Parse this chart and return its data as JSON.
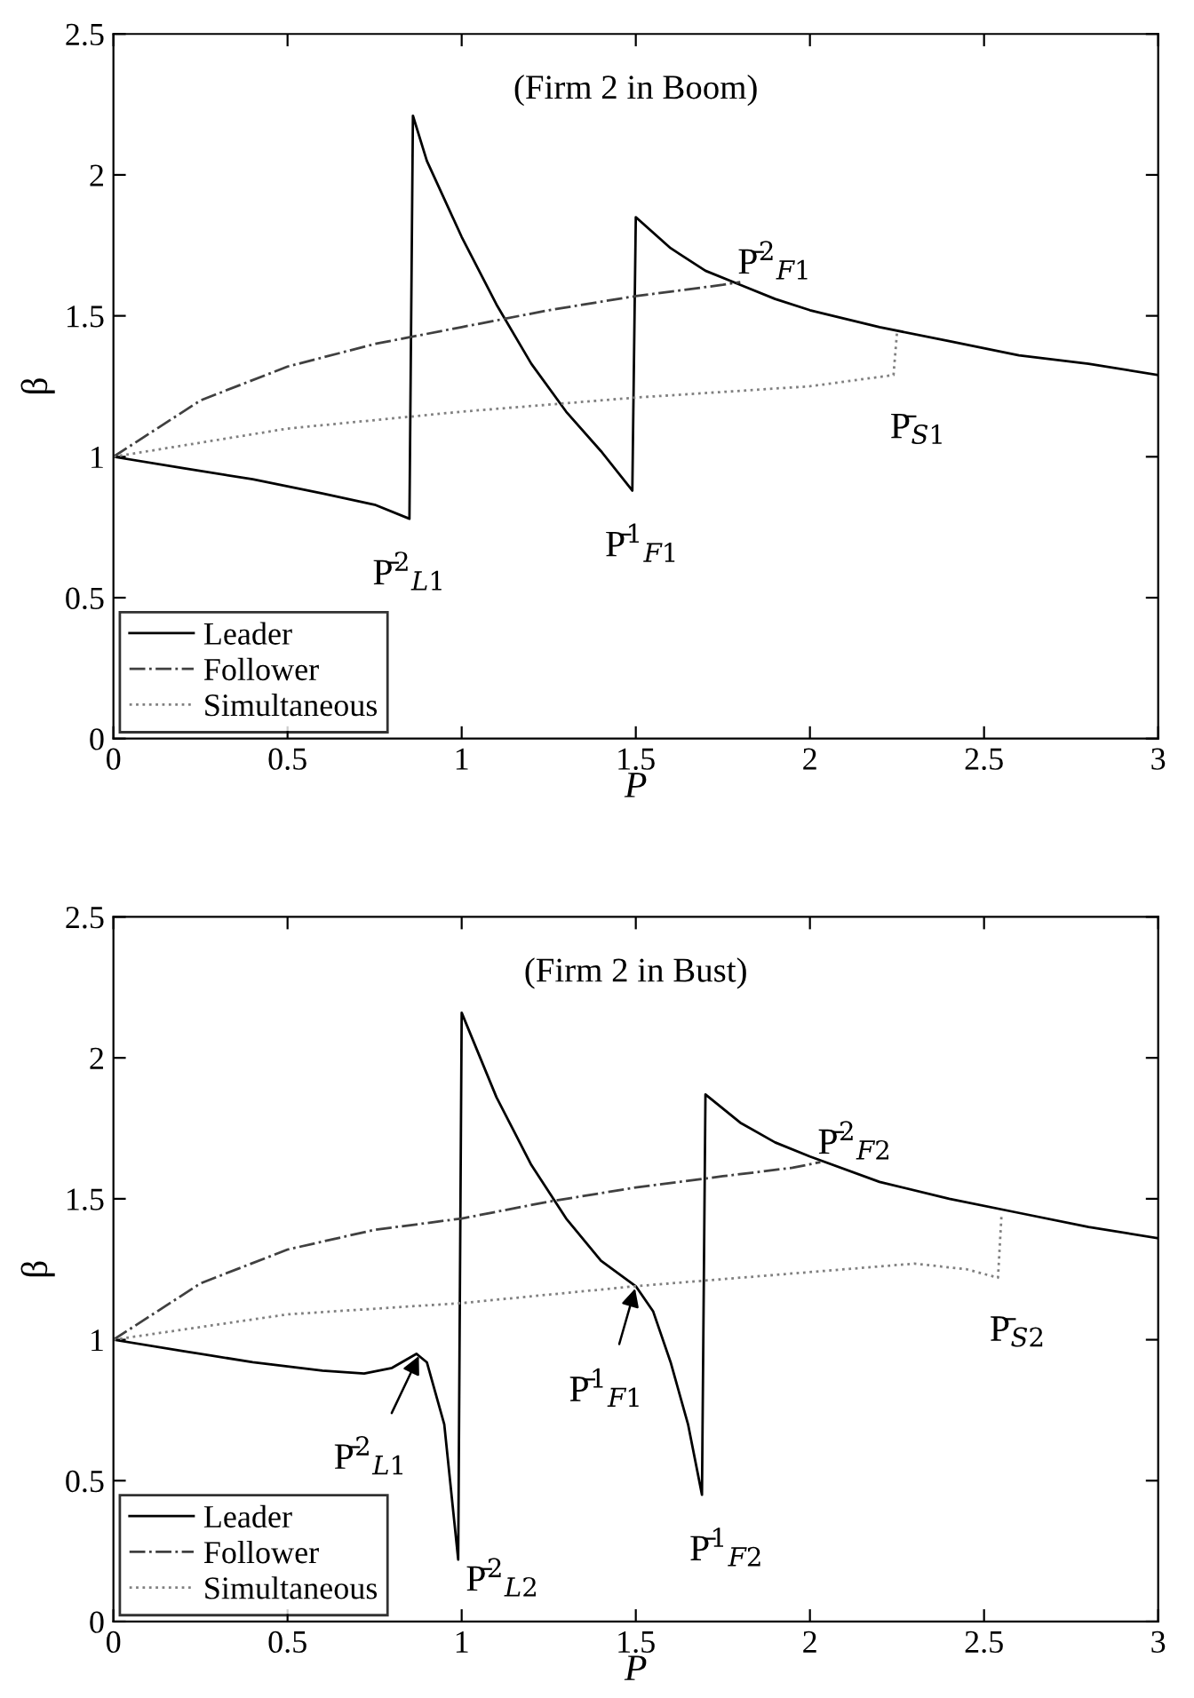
{
  "chart_data": [
    {
      "type": "line",
      "title": "(Firm 2 in Boom)",
      "xlabel": "P",
      "ylabel": "β",
      "xlim": [
        0,
        3
      ],
      "ylim": [
        0,
        2.5
      ],
      "xticks": [
        0,
        0.5,
        1,
        1.5,
        2,
        2.5,
        3
      ],
      "yticks": [
        0,
        0.5,
        1,
        1.5,
        2,
        2.5
      ],
      "grid": false,
      "legend": "bottom left",
      "marker": "none",
      "series": [
        {
          "name": "Leader",
          "color": "#000000",
          "line_style": "solid",
          "x": [
            0,
            0.2,
            0.4,
            0.6,
            0.75,
            0.85,
            0.86,
            0.9,
            1.0,
            1.1,
            1.2,
            1.3,
            1.4,
            1.49,
            1.5,
            1.6,
            1.7,
            1.8,
            1.9,
            2.0,
            2.2,
            2.4,
            2.6,
            2.8,
            3.0
          ],
          "values": [
            1,
            0.96,
            0.92,
            0.87,
            0.83,
            0.78,
            2.21,
            2.05,
            1.78,
            1.54,
            1.33,
            1.16,
            1.02,
            0.88,
            1.85,
            1.74,
            1.66,
            1.61,
            1.56,
            1.52,
            1.46,
            1.41,
            1.36,
            1.33,
            1.29
          ]
        },
        {
          "name": "Follower",
          "color": "#404040",
          "line_style": "dashdot",
          "x": [
            0,
            0.25,
            0.5,
            0.75,
            1.0,
            1.25,
            1.5,
            1.75,
            1.8
          ],
          "values": [
            1,
            1.2,
            1.32,
            1.4,
            1.46,
            1.52,
            1.57,
            1.61,
            1.62
          ]
        },
        {
          "name": "Simultaneous",
          "color": "#808080",
          "line_style": "dotted",
          "x": [
            0,
            0.5,
            1,
            1.5,
            2,
            2.24,
            2.25
          ],
          "values": [
            1,
            1.1,
            1.16,
            1.21,
            1.25,
            1.29,
            1.44
          ]
        }
      ],
      "annotations": [
        {
          "text": "P̄$^{2}$$_{L1}$",
          "x": 0.85,
          "y": 0.78
        },
        {
          "text": "P̄$^{1}$$_{F1}$",
          "x": 1.49,
          "y": 0.88
        },
        {
          "text": "P̄$^{2}$$_{F1}$",
          "x": 1.8,
          "y": 1.62
        },
        {
          "text": "P̄$_{S1}$",
          "x": 2.24,
          "y": 1.29
        }
      ]
    },
    {
      "type": "line",
      "title": "(Firm 2 in Bust)",
      "xlabel": "P",
      "ylabel": "β",
      "xlim": [
        0,
        3
      ],
      "ylim": [
        0,
        2.5
      ],
      "xticks": [
        0,
        0.5,
        1,
        1.5,
        2,
        2.5,
        3
      ],
      "yticks": [
        0,
        0.5,
        1,
        1.5,
        2,
        2.5
      ],
      "grid": false,
      "legend": "bottom left",
      "marker": "none",
      "series": [
        {
          "name": "Leader",
          "color": "#000000",
          "line_style": "solid",
          "x": [
            0,
            0.2,
            0.4,
            0.6,
            0.72,
            0.8,
            0.87,
            0.9,
            0.95,
            0.99,
            1.0,
            1.1,
            1.2,
            1.3,
            1.4,
            1.5,
            1.55,
            1.6,
            1.65,
            1.69,
            1.7,
            1.8,
            1.9,
            2.0,
            2.2,
            2.4,
            2.6,
            2.8,
            3.0
          ],
          "values": [
            1,
            0.96,
            0.92,
            0.89,
            0.88,
            0.9,
            0.95,
            0.92,
            0.7,
            0.22,
            2.16,
            1.86,
            1.62,
            1.43,
            1.28,
            1.19,
            1.1,
            0.92,
            0.7,
            0.45,
            1.87,
            1.77,
            1.7,
            1.65,
            1.56,
            1.5,
            1.45,
            1.4,
            1.36
          ]
        },
        {
          "name": "Follower",
          "color": "#404040",
          "line_style": "dashdot",
          "x": [
            0,
            0.25,
            0.5,
            0.75,
            1.0,
            1.25,
            1.5,
            1.75,
            1.95,
            2.03
          ],
          "values": [
            1,
            1.2,
            1.32,
            1.39,
            1.43,
            1.49,
            1.54,
            1.58,
            1.61,
            1.63
          ]
        },
        {
          "name": "Simultaneous",
          "color": "#808080",
          "line_style": "dotted",
          "x": [
            0,
            0.5,
            1,
            1.5,
            2,
            2.3,
            2.45,
            2.54,
            2.55
          ],
          "values": [
            1,
            1.09,
            1.13,
            1.19,
            1.24,
            1.27,
            1.25,
            1.22,
            1.44
          ]
        }
      ],
      "annotations": [
        {
          "text": "P̄$^{2}$$_{L1}$",
          "x": 0.88,
          "y": 0.95
        },
        {
          "text": "P̄$^{2}$$_{L2}$",
          "x": 0.99,
          "y": 0.22
        },
        {
          "text": "P̄$^{1}$$_{F1}$",
          "x": 1.5,
          "y": 1.19
        },
        {
          "text": "P̄$^{1}$$_{F2}$",
          "x": 1.69,
          "y": 0.45
        },
        {
          "text": "P̄$^{2}$$_{F2}$",
          "x": 2.03,
          "y": 1.63
        },
        {
          "text": "P̄$_{S2}$",
          "x": 2.54,
          "y": 1.22
        }
      ]
    }
  ]
}
